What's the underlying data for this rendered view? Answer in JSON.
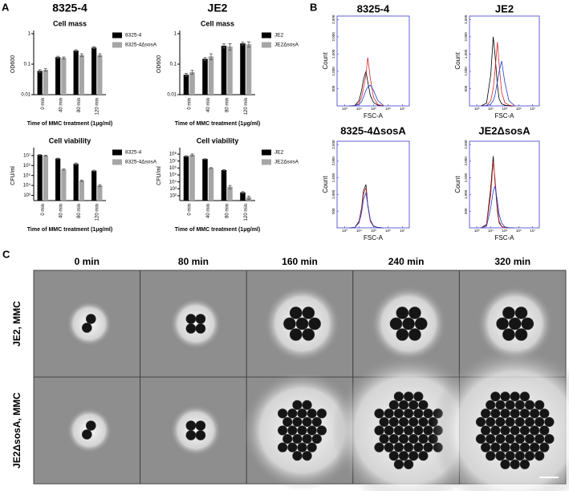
{
  "panel_labels": [
    "A",
    "B",
    "C"
  ],
  "chart_data": [
    {
      "type": "bar",
      "header": "8325-4",
      "title": "Cell mass",
      "y_label": "OD600",
      "x_label": "Time of MMC treatment (1μg/ml)",
      "categories": [
        "0 min",
        "40 min",
        "80 min",
        "120 min"
      ],
      "yscale": "log",
      "ylim": [
        0.01,
        1
      ],
      "yticks": [
        0.01,
        0.1,
        1
      ],
      "series": [
        {
          "name": "8325-4",
          "color": "#000000",
          "values": [
            0.06,
            0.17,
            0.28,
            0.35
          ],
          "errors": [
            0.006,
            0.012,
            0.02,
            0.025
          ]
        },
        {
          "name": "8325-4ΔsosA",
          "color": "#a6a6a6",
          "values": [
            0.065,
            0.16,
            0.2,
            0.2
          ],
          "errors": [
            0.006,
            0.012,
            0.02,
            0.02
          ]
        }
      ]
    },
    {
      "type": "bar",
      "header": "JE2",
      "title": "Cell mass",
      "y_label": "OD600",
      "x_label": "Time of MMC treatment (1μg/ml)",
      "categories": [
        "0 min",
        "40 min",
        "80 min",
        "120 min"
      ],
      "yscale": "log",
      "ylim": [
        0.01,
        1
      ],
      "yticks": [
        0.01,
        0.1,
        1
      ],
      "series": [
        {
          "name": "JE2",
          "color": "#000000",
          "values": [
            0.045,
            0.15,
            0.4,
            0.48
          ],
          "errors": [
            0.005,
            0.015,
            0.06,
            0.05
          ]
        },
        {
          "name": "JE2ΔsosA",
          "color": "#a6a6a6",
          "values": [
            0.055,
            0.18,
            0.38,
            0.45
          ],
          "errors": [
            0.008,
            0.04,
            0.09,
            0.09
          ]
        }
      ]
    },
    {
      "type": "bar",
      "title": "Cell viability",
      "y_label": "CFU/ml",
      "x_label": "Time of MMC treatment (1μg/ml)",
      "categories": [
        "0 min",
        "40 min",
        "80 min",
        "120 min"
      ],
      "yscale": "log",
      "ylim": [
        300,
        30000000
      ],
      "yticks": [
        {
          "value": 1000,
          "label": "10³"
        },
        {
          "value": 10000,
          "label": "10⁴"
        },
        {
          "value": 100000,
          "label": "10⁵"
        },
        {
          "value": 1000000,
          "label": "10⁶"
        },
        {
          "value": 10000000,
          "label": "10⁷"
        }
      ],
      "series": [
        {
          "name": "8325-4",
          "color": "#000000",
          "values": [
            12000000,
            5000000,
            1500000,
            300000
          ],
          "errors": [
            1000000,
            500000,
            300000,
            40000
          ]
        },
        {
          "name": "8325-4ΔsosA",
          "color": "#a6a6a6",
          "values": [
            10000000,
            400000,
            30000,
            10000
          ],
          "errors": [
            800000,
            50000,
            5000,
            2000
          ]
        }
      ]
    },
    {
      "type": "bar",
      "title": "Cell viability",
      "y_label": "CFU/ml",
      "x_label": "Time of MMC treatment (1μg/ml)",
      "categories": [
        "0 min",
        "40 min",
        "80 min",
        "120 min"
      ],
      "yscale": "log",
      "ylim": [
        20,
        300000000
      ],
      "yticks": [
        {
          "value": 100,
          "label": "10²"
        },
        {
          "value": 1000,
          "label": "10³"
        },
        {
          "value": 10000,
          "label": "10⁴"
        },
        {
          "value": 100000,
          "label": "10⁵"
        },
        {
          "value": 1000000,
          "label": "10⁶"
        },
        {
          "value": 10000000,
          "label": "10⁷"
        },
        {
          "value": 100000000,
          "label": "10⁸"
        }
      ],
      "series": [
        {
          "name": "JE2",
          "color": "#000000",
          "values": [
            50000000,
            20000000,
            500000,
            300
          ],
          "errors": [
            8000000,
            2000000,
            80000,
            100
          ]
        },
        {
          "name": "JE2ΔsosA",
          "color": "#a6a6a6",
          "values": [
            80000000,
            1000000,
            2000,
            60
          ],
          "errors": [
            25000000,
            150000,
            1000,
            30
          ]
        }
      ]
    },
    {
      "type": "line",
      "title": "8325-4",
      "y_label": "Count",
      "x_label": "FSC-A",
      "xscale": "log",
      "xlim": [
        300,
        30000000
      ],
      "ylim": [
        0,
        2600
      ],
      "xticks": [
        {
          "value": 1000,
          "label": "10³"
        },
        {
          "value": 10000,
          "label": "10⁴"
        },
        {
          "value": 100000,
          "label": "10⁵"
        },
        {
          "value": 1000000,
          "label": "10⁶"
        },
        {
          "value": 10000000,
          "label": "10⁷"
        }
      ],
      "yticks": [
        500,
        {
          "value": 1000,
          "label": "1,000"
        },
        {
          "value": 1500,
          "label": "1,500"
        },
        {
          "value": 2000,
          "label": "2,000"
        },
        {
          "value": 2500,
          "label": "2,500"
        }
      ],
      "x": [
        2000,
        5000,
        10000,
        15000,
        20000,
        30000,
        40000,
        60000,
        100000,
        200000,
        500000
      ],
      "series": [
        {
          "color": "#000000",
          "values": [
            0,
            10,
            150,
            450,
            750,
            1000,
            700,
            300,
            100,
            20,
            0
          ]
        },
        {
          "color": "#d62728",
          "values": [
            0,
            5,
            80,
            250,
            500,
            900,
            1400,
            800,
            250,
            40,
            0
          ]
        },
        {
          "color": "#1f3fd6",
          "values": [
            0,
            5,
            40,
            120,
            250,
            450,
            550,
            600,
            450,
            150,
            10
          ]
        }
      ]
    },
    {
      "type": "line",
      "title": "JE2",
      "y_label": "Count",
      "x_label": "FSC-A",
      "xscale": "log",
      "xlim": [
        300,
        30000000
      ],
      "ylim": [
        0,
        2600
      ],
      "xticks": [
        {
          "value": 1000,
          "label": "10³"
        },
        {
          "value": 10000,
          "label": "10⁴"
        },
        {
          "value": 100000,
          "label": "10⁵"
        },
        {
          "value": 1000000,
          "label": "10⁶"
        },
        {
          "value": 10000000,
          "label": "10⁷"
        }
      ],
      "yticks": [
        500,
        {
          "value": 1000,
          "label": "1,000"
        },
        {
          "value": 1500,
          "label": "1,500"
        },
        {
          "value": 2000,
          "label": "2,000"
        },
        {
          "value": 2500,
          "label": "2,500"
        }
      ],
      "x": [
        2000,
        5000,
        10000,
        15000,
        20000,
        30000,
        40000,
        60000,
        100000,
        200000,
        500000
      ],
      "series": [
        {
          "color": "#000000",
          "values": [
            0,
            80,
            900,
            2000,
            1500,
            600,
            200,
            60,
            20,
            5,
            0
          ]
        },
        {
          "color": "#d62728",
          "values": [
            0,
            10,
            150,
            500,
            1000,
            1850,
            1200,
            400,
            100,
            20,
            0
          ]
        },
        {
          "color": "#1f3fd6",
          "values": [
            0,
            5,
            50,
            150,
            300,
            700,
            1000,
            1300,
            700,
            150,
            10
          ]
        }
      ]
    },
    {
      "type": "line",
      "title": "8325-4ΔsosA",
      "y_label": "Count",
      "x_label": "FSC-A",
      "xscale": "log",
      "xlim": [
        300,
        30000000
      ],
      "ylim": [
        0,
        2600
      ],
      "xticks": [
        {
          "value": 1000,
          "label": "10³"
        },
        {
          "value": 10000,
          "label": "10⁴"
        },
        {
          "value": 100000,
          "label": "10⁵"
        },
        {
          "value": 1000000,
          "label": "10⁶"
        },
        {
          "value": 10000000,
          "label": "10⁷"
        }
      ],
      "yticks": [
        500,
        {
          "value": 1000,
          "label": "1,000"
        },
        {
          "value": 1500,
          "label": "1,500"
        },
        {
          "value": 2000,
          "label": "2,000"
        },
        {
          "value": 2500,
          "label": "2,500"
        }
      ],
      "x": [
        2000,
        5000,
        10000,
        15000,
        20000,
        30000,
        40000,
        60000,
        100000,
        200000,
        500000
      ],
      "series": [
        {
          "color": "#000000",
          "values": [
            0,
            10,
            200,
            600,
            1100,
            1300,
            700,
            200,
            50,
            10,
            0
          ]
        },
        {
          "color": "#d62728",
          "values": [
            0,
            10,
            180,
            550,
            1000,
            1200,
            650,
            200,
            50,
            10,
            0
          ]
        },
        {
          "color": "#1f3fd6",
          "values": [
            0,
            10,
            150,
            450,
            850,
            1050,
            700,
            250,
            60,
            10,
            0
          ]
        }
      ]
    },
    {
      "type": "line",
      "title": "JE2ΔsosA",
      "y_label": "Count",
      "x_label": "FSC-A",
      "xscale": "log",
      "xlim": [
        300,
        30000000
      ],
      "ylim": [
        0,
        2600
      ],
      "xticks": [
        {
          "value": 1000,
          "label": "10³"
        },
        {
          "value": 10000,
          "label": "10⁴"
        },
        {
          "value": 100000,
          "label": "10⁵"
        },
        {
          "value": 1000000,
          "label": "10⁶"
        },
        {
          "value": 10000000,
          "label": "10⁷"
        }
      ],
      "yticks": [
        500,
        {
          "value": 1000,
          "label": "1,000"
        },
        {
          "value": 1500,
          "label": "1,500"
        },
        {
          "value": 2000,
          "label": "2,000"
        },
        {
          "value": 2500,
          "label": "2,500"
        }
      ],
      "x": [
        2000,
        5000,
        10000,
        15000,
        20000,
        30000,
        40000,
        60000,
        100000,
        200000,
        500000
      ],
      "series": [
        {
          "color": "#000000",
          "values": [
            0,
            100,
            1200,
            2150,
            1400,
            500,
            150,
            40,
            10,
            0,
            0
          ]
        },
        {
          "color": "#d62728",
          "values": [
            0,
            80,
            1000,
            2000,
            1500,
            600,
            200,
            50,
            10,
            0,
            0
          ]
        },
        {
          "color": "#1f3fd6",
          "values": [
            0,
            50,
            600,
            1100,
            1250,
            800,
            400,
            150,
            30,
            5,
            0
          ]
        }
      ]
    }
  ],
  "micrographs": {
    "columns": [
      "0 min",
      "80 min",
      "160 min",
      "240 min",
      "320 min"
    ],
    "rows": [
      "JE2, MMC",
      "JE2ΔsosA, MMC"
    ]
  }
}
